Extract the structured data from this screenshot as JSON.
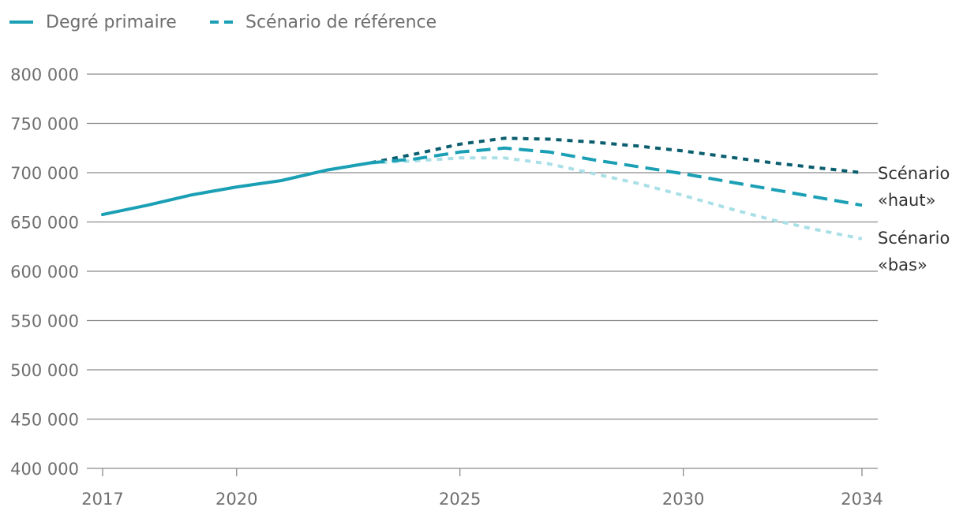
{
  "chart_data": {
    "type": "line",
    "title": "",
    "xlabel": "",
    "ylabel": "",
    "xlim": [
      2017,
      2034
    ],
    "ylim": [
      400000,
      800000
    ],
    "x_ticks": [
      2017,
      2020,
      2025,
      2030,
      2034
    ],
    "x_tick_labels": [
      "2017",
      "2020",
      "2025",
      "2030",
      "2034"
    ],
    "y_ticks": [
      400000,
      450000,
      500000,
      550000,
      600000,
      650000,
      700000,
      750000,
      800000
    ],
    "y_tick_labels": [
      "400 000",
      "450 000",
      "500 000",
      "550 000",
      "600 000",
      "650 000",
      "700 000",
      "750 000",
      "800 000"
    ],
    "grid": "horizontal",
    "legend": {
      "placement": "top-left",
      "items": [
        {
          "label": "Degré primaire",
          "style": "solid"
        },
        {
          "label": "Scénario de référence",
          "style": "dashed"
        }
      ]
    },
    "annotations": [
      {
        "text_line1": "Scénario",
        "text_line2": "«haut»",
        "series": "haut"
      },
      {
        "text_line1": "Scénario",
        "text_line2": "«bas»",
        "series": "bas"
      }
    ],
    "series": [
      {
        "name": "Degré primaire",
        "key": "observed",
        "style": "solid",
        "color": "#1a9fb5",
        "x": [
          2017,
          2018,
          2019,
          2020,
          2021,
          2022,
          2023
        ],
        "y": [
          657500,
          667000,
          677500,
          685500,
          692000,
          702500,
          710000
        ]
      },
      {
        "name": "Scénario de référence",
        "key": "reference",
        "style": "dashed",
        "color": "#1a9fb5",
        "x": [
          2023,
          2024,
          2025,
          2026,
          2027,
          2028,
          2029,
          2030,
          2031,
          2032,
          2033,
          2034
        ],
        "y": [
          710000,
          714000,
          721000,
          725000,
          721000,
          713000,
          706000,
          699000,
          691000,
          683000,
          675000,
          667000
        ]
      },
      {
        "key": "haut",
        "style": "dotted",
        "color": "#0a5e6e",
        "x": [
          2023,
          2024,
          2025,
          2026,
          2027,
          2028,
          2029,
          2030,
          2031,
          2032,
          2033,
          2034
        ],
        "y": [
          710000,
          719000,
          729000,
          735000,
          734000,
          731000,
          727000,
          722000,
          716000,
          710000,
          705000,
          700000
        ]
      },
      {
        "key": "bas",
        "style": "dotted",
        "color": "#a9dfe6",
        "x": [
          2023,
          2024,
          2025,
          2026,
          2027,
          2028,
          2029,
          2030,
          2031,
          2032,
          2033,
          2034
        ],
        "y": [
          710000,
          712000,
          715000,
          715000,
          709000,
          699000,
          689000,
          677000,
          664000,
          652000,
          642000,
          633000
        ]
      }
    ]
  }
}
